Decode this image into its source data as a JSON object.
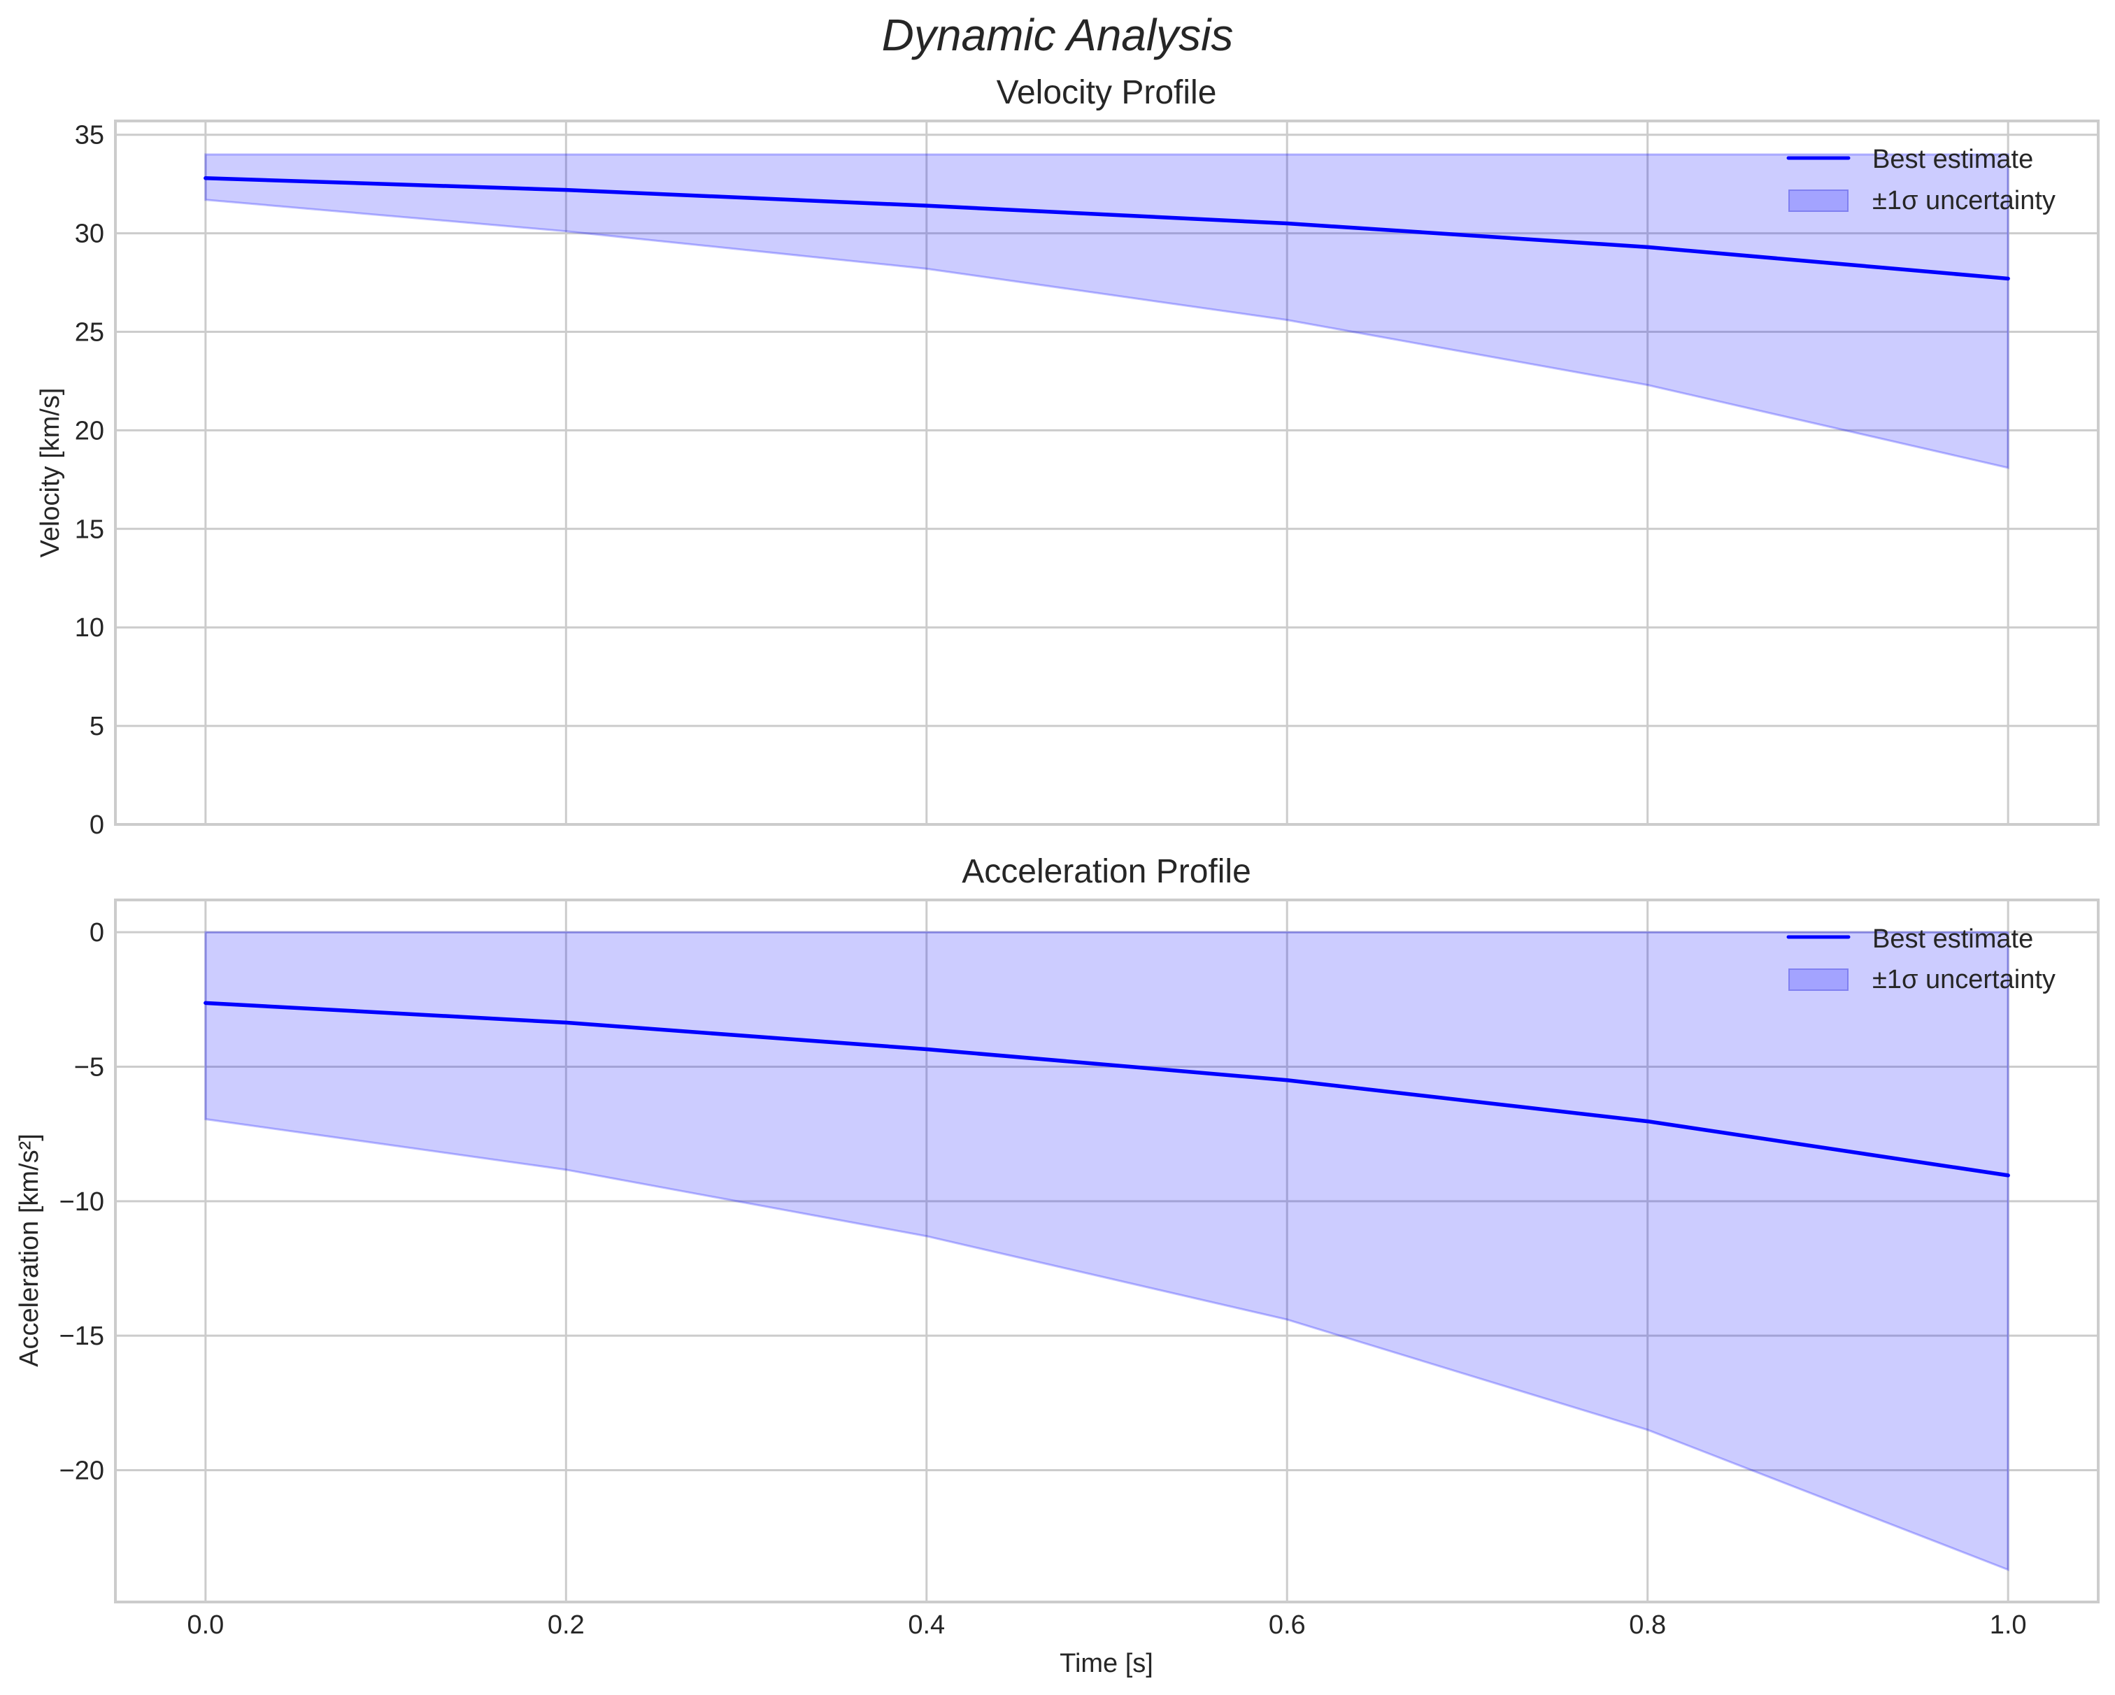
{
  "figure": {
    "title": "Dynamic Analysis"
  },
  "colors": {
    "line": "#0000ff",
    "band_fill": "#0000ff",
    "band_alpha": 0.2,
    "legend_patch_fill": "#a3a3ff",
    "grid": "#cccccc",
    "text": "#262626"
  },
  "chart_data": [
    {
      "type": "line",
      "title": "Velocity Profile",
      "xlabel": "",
      "ylabel": "Velocity [km/s]",
      "xlim": [
        -0.05,
        1.05
      ],
      "ylim": [
        0,
        35.7
      ],
      "xticks": [
        0.0,
        0.2,
        0.4,
        0.6,
        0.8,
        1.0
      ],
      "xtick_labels_visible": false,
      "yticks": [
        0,
        5,
        10,
        15,
        20,
        25,
        30,
        35
      ],
      "ytick_labels": [
        "0",
        "5",
        "10",
        "15",
        "20",
        "25",
        "30",
        "35"
      ],
      "grid": true,
      "legend": {
        "position": "upper right",
        "entries": [
          "Best estimate",
          "±1σ uncertainty"
        ]
      },
      "x": [
        0.0,
        0.2,
        0.4,
        0.6,
        0.8,
        1.0
      ],
      "series": [
        {
          "name": "Best estimate",
          "kind": "line",
          "values": [
            32.8,
            32.2,
            31.4,
            30.5,
            29.3,
            27.7
          ]
        },
        {
          "name": "±1σ uncertainty",
          "kind": "band",
          "upper": [
            34.0,
            34.0,
            34.0,
            34.0,
            34.0,
            34.0
          ],
          "lower": [
            31.7,
            30.1,
            28.2,
            25.6,
            22.3,
            18.1
          ]
        }
      ]
    },
    {
      "type": "line",
      "title": "Acceleration Profile",
      "xlabel": "Time [s]",
      "ylabel": "Acceleration [km/s²]",
      "xlim": [
        -0.05,
        1.05
      ],
      "ylim": [
        -24.9,
        1.2
      ],
      "xticks": [
        0.0,
        0.2,
        0.4,
        0.6,
        0.8,
        1.0
      ],
      "xtick_labels": [
        "0.0",
        "0.2",
        "0.4",
        "0.6",
        "0.8",
        "1.0"
      ],
      "xtick_labels_visible": true,
      "yticks": [
        0,
        -5,
        -10,
        -15,
        -20
      ],
      "ytick_labels": [
        "0",
        "−5",
        "−10",
        "−15",
        "−20"
      ],
      "grid": true,
      "legend": {
        "position": "upper right",
        "entries": [
          "Best estimate",
          "±1σ uncertainty"
        ]
      },
      "x": [
        0.0,
        0.2,
        0.4,
        0.6,
        0.8,
        1.0
      ],
      "series": [
        {
          "name": "Best estimate",
          "kind": "line",
          "values": [
            -2.63,
            -3.36,
            -4.35,
            -5.5,
            -7.03,
            -9.04
          ]
        },
        {
          "name": "±1σ uncertainty",
          "kind": "band",
          "upper": [
            0.0,
            0.0,
            0.0,
            0.0,
            0.0,
            0.0
          ],
          "lower": [
            -6.95,
            -8.83,
            -11.3,
            -14.4,
            -18.5,
            -23.7
          ]
        }
      ]
    }
  ]
}
